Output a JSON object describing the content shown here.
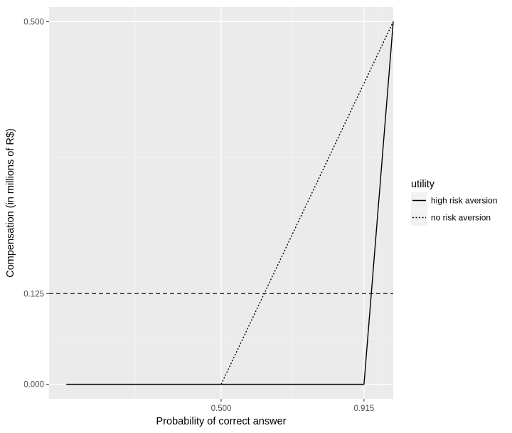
{
  "chart_data": {
    "type": "line",
    "title": "",
    "xlabel": "Probability of correct answer",
    "ylabel": "Compensation (in millions of R$)",
    "xlim": [
      0.0,
      1.0
    ],
    "ylim": [
      -0.02,
      0.52
    ],
    "x_ticks": [
      {
        "value": 0.5,
        "label": "0.500"
      },
      {
        "value": 0.915,
        "label": "0.915"
      }
    ],
    "x_minor_gridlines": [
      0.25,
      0.7075,
      0.9575
    ],
    "y_ticks": [
      {
        "value": 0.0,
        "label": "0.000"
      },
      {
        "value": 0.125,
        "label": "0.125"
      },
      {
        "value": 0.5,
        "label": "0.500"
      }
    ],
    "y_minor_gridlines": [
      0.0625,
      0.3125
    ],
    "grid": true,
    "reference_line": {
      "axis": "y",
      "value": 0.125,
      "style": "dashed"
    },
    "legend": {
      "title": "utility",
      "position": "right",
      "entries": [
        {
          "label": "high risk aversion",
          "style": "solid"
        },
        {
          "label": "no risk aversion",
          "style": "dotted"
        }
      ]
    },
    "series": [
      {
        "name": "high risk aversion",
        "style": "solid",
        "color": "#000000",
        "x": [
          0.05,
          0.915,
          1.0
        ],
        "y": [
          0.0,
          0.0,
          0.5
        ]
      },
      {
        "name": "no risk aversion",
        "style": "dotted",
        "color": "#000000",
        "x": [
          0.5,
          1.0
        ],
        "y": [
          0.0,
          0.5
        ]
      }
    ],
    "colors": {
      "panel_background": "#ebebeb",
      "grid_major": "#ffffff",
      "grid_minor": "#f5f5f5",
      "tick_mark": "#333333",
      "legend_key_background": "#f2f2f2"
    }
  }
}
